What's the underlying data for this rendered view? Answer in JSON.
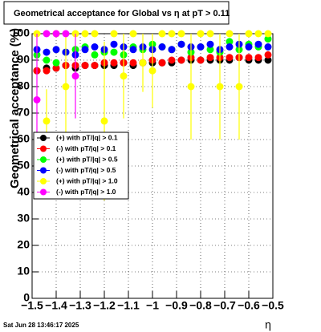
{
  "chart_data": {
    "type": "scatter",
    "title": "Geometrical acceptance for Global vs   η  at pT > 0.11",
    "y_label": "Geometrical acceptance (%)",
    "x_label": "η",
    "footer": "Sat Jun 28 13:46:17 2025",
    "xlim": [
      -1.5,
      -0.5
    ],
    "ylim": [
      0,
      100
    ],
    "grid": true,
    "xticks": [
      {
        "value": -1.5,
        "label": "−1.5"
      },
      {
        "value": -1.4,
        "label": "−1.4"
      },
      {
        "value": -1.3,
        "label": "−1.3"
      },
      {
        "value": -1.2,
        "label": "−1.2"
      },
      {
        "value": -1.1,
        "label": "−1.1"
      },
      {
        "value": -1,
        "label": "−1"
      },
      {
        "value": -0.9,
        "label": "−0.9"
      },
      {
        "value": -0.8,
        "label": "−0.8"
      },
      {
        "value": -0.7,
        "label": "−0.7"
      },
      {
        "value": -0.6,
        "label": "−0.6"
      },
      {
        "value": -0.5,
        "label": "−0.5"
      }
    ],
    "yticks": [
      0,
      10,
      20,
      30,
      40,
      50,
      60,
      70,
      80,
      90,
      100
    ],
    "x": [
      -1.48,
      -1.44,
      -1.4,
      -1.36,
      -1.32,
      -1.28,
      -1.24,
      -1.2,
      -1.16,
      -1.12,
      -1.08,
      -1.04,
      -1.0,
      -0.96,
      -0.92,
      -0.88,
      -0.84,
      -0.8,
      -0.76,
      -0.72,
      -0.68,
      -0.64,
      -0.6,
      -0.56,
      -0.52
    ],
    "series": [
      {
        "name": "(+) with pT/|q| > 0.1",
        "color": "#000000",
        "values": [
          86,
          87,
          87,
          88,
          87,
          88,
          88,
          88,
          88,
          89,
          88,
          89,
          89,
          89,
          89,
          90,
          90,
          90,
          90,
          90,
          90,
          91,
          90,
          90,
          90
        ]
      },
      {
        "name": "(-) with pT/|q| > 0.1",
        "color": "#ff0000",
        "values": [
          86,
          86,
          87,
          88,
          88,
          88,
          88,
          89,
          89,
          89,
          89,
          89,
          90,
          89,
          90,
          90,
          91,
          90,
          91,
          91,
          91,
          91,
          91,
          91,
          92
        ]
      },
      {
        "name": "(+) with pT/|q| > 0.5",
        "color": "#00ff00",
        "values": [
          92,
          90,
          89,
          93,
          94,
          95,
          92,
          93,
          93,
          92,
          95,
          94,
          96,
          95,
          94,
          96,
          93,
          95,
          94,
          93,
          97,
          94,
          96,
          95,
          98
        ]
      },
      {
        "name": "(-) with pT/|q| > 0.5",
        "color": "#0000ff",
        "values": [
          94,
          93,
          94,
          93,
          92,
          94,
          95,
          94,
          96,
          95,
          94,
          95,
          94,
          95,
          94,
          96,
          95,
          95,
          96,
          94,
          95,
          96,
          95,
          96,
          95
        ]
      },
      {
        "name": "(+) with pT/|q| > 1.0",
        "color": "#ffff00",
        "values": [
          100,
          67,
          100,
          80,
          100,
          100,
          100,
          67,
          100,
          84,
          100,
          89,
          86,
          100,
          100,
          100,
          80,
          100,
          100,
          80,
          100,
          80,
          100,
          100,
          100
        ],
        "errors": [
          0,
          12,
          0,
          20,
          0,
          0,
          0,
          30,
          0,
          16,
          0,
          11,
          14,
          0,
          0,
          0,
          20,
          0,
          0,
          20,
          0,
          20,
          0,
          0,
          0
        ]
      },
      {
        "name": "(-) with pT/|q| > 1.0",
        "color": "#ff00ff",
        "values": [
          75,
          100,
          100,
          100,
          84,
          null,
          null,
          null,
          null,
          null,
          null,
          null,
          null,
          null,
          null,
          null,
          null,
          null,
          null,
          null,
          null,
          null,
          null,
          null,
          null
        ],
        "errors": [
          25,
          0,
          0,
          0,
          16,
          null,
          null,
          null,
          null,
          null,
          null,
          null,
          null,
          null,
          null,
          null,
          null,
          null,
          null,
          null,
          null,
          null,
          null,
          null,
          null
        ]
      }
    ]
  }
}
